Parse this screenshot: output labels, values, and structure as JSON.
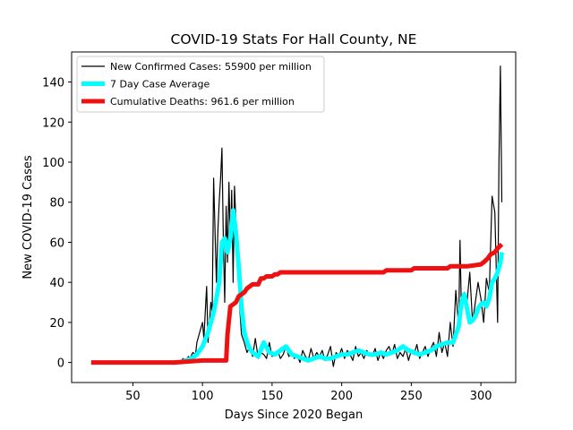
{
  "chart_data": {
    "type": "line",
    "title": "COVID-19 Stats For Hall County, NE",
    "xlabel": "Days Since 2020 Began",
    "ylabel": "New COVID-19 Cases",
    "xlim": [
      6,
      325
    ],
    "ylim": [
      -10,
      155
    ],
    "xticks": [
      50,
      100,
      150,
      200,
      250,
      300
    ],
    "yticks": [
      0,
      20,
      40,
      60,
      80,
      100,
      120,
      140
    ],
    "grid": false,
    "legend_position": "top-left",
    "series": [
      {
        "name": "New Confirmed Cases: 55900 per million",
        "color": "#000000",
        "x": [
          84,
          86,
          88,
          90,
          91,
          93,
          95,
          96,
          98,
          100,
          101,
          103,
          104,
          106,
          107,
          108,
          110,
          111,
          112,
          113,
          114,
          115,
          116,
          117,
          118,
          119,
          120,
          121,
          122,
          123,
          124,
          125,
          126,
          127,
          128,
          129,
          130,
          132,
          134,
          136,
          138,
          140,
          142,
          144,
          146,
          148,
          150,
          152,
          154,
          156,
          158,
          160,
          162,
          164,
          166,
          168,
          170,
          172,
          174,
          176,
          178,
          180,
          182,
          184,
          186,
          188,
          190,
          192,
          194,
          196,
          198,
          200,
          202,
          204,
          206,
          208,
          210,
          212,
          214,
          216,
          218,
          220,
          222,
          224,
          226,
          228,
          230,
          232,
          234,
          236,
          238,
          240,
          242,
          244,
          246,
          248,
          250,
          252,
          254,
          256,
          258,
          260,
          262,
          264,
          266,
          268,
          270,
          272,
          274,
          276,
          278,
          280,
          282,
          284,
          285,
          286,
          288,
          290,
          292,
          294,
          296,
          298,
          300,
          302,
          304,
          306,
          308,
          310,
          312,
          313,
          314,
          315
        ],
        "values": [
          0,
          2,
          1,
          3,
          2,
          5,
          4,
          10,
          15,
          20,
          12,
          38,
          10,
          30,
          25,
          92,
          40,
          65,
          80,
          92,
          107,
          60,
          30,
          78,
          50,
          90,
          60,
          86,
          40,
          88,
          70,
          50,
          40,
          25,
          14,
          12,
          10,
          5,
          8,
          3,
          12,
          2,
          5,
          4,
          2,
          10,
          3,
          5,
          6,
          2,
          4,
          8,
          3,
          5,
          2,
          4,
          0,
          6,
          3,
          1,
          7,
          2,
          5,
          3,
          6,
          1,
          4,
          8,
          -2,
          5,
          3,
          7,
          2,
          6,
          4,
          1,
          8,
          3,
          5,
          2,
          6,
          4,
          3,
          7,
          1,
          5,
          2,
          6,
          8,
          4,
          9,
          2,
          5,
          3,
          7,
          1,
          6,
          4,
          9,
          2,
          5,
          8,
          3,
          7,
          10,
          3,
          15,
          5,
          10,
          3,
          20,
          8,
          36,
          18,
          61,
          25,
          35,
          30,
          45,
          20,
          30,
          40,
          32,
          20,
          42,
          35,
          83,
          75,
          20,
          100,
          148,
          80
        ]
      },
      {
        "name": "7 Day Case Average",
        "color": "#00ffff",
        "x": [
          84,
          88,
          92,
          96,
          100,
          104,
          108,
          110,
          112,
          114,
          116,
          118,
          120,
          122,
          124,
          126,
          128,
          130,
          132,
          134,
          136,
          138,
          140,
          144,
          148,
          152,
          156,
          160,
          164,
          168,
          172,
          176,
          180,
          184,
          188,
          192,
          196,
          200,
          204,
          208,
          212,
          216,
          220,
          224,
          228,
          232,
          236,
          240,
          244,
          248,
          252,
          256,
          260,
          264,
          268,
          272,
          276,
          280,
          284,
          286,
          288,
          290,
          292,
          294,
          296,
          298,
          300,
          302,
          304,
          306,
          308,
          310,
          312,
          314,
          315
        ],
        "values": [
          0,
          1,
          2,
          4,
          8,
          15,
          25,
          32,
          40,
          60,
          62,
          55,
          62,
          76,
          65,
          48,
          28,
          15,
          10,
          7,
          5,
          4,
          3,
          10,
          5,
          4,
          6,
          8,
          4,
          3,
          2,
          1,
          2,
          3,
          2,
          2,
          3,
          4,
          4,
          5,
          6,
          5,
          4,
          4,
          5,
          4,
          5,
          6,
          8,
          6,
          5,
          4,
          5,
          6,
          8,
          9,
          10,
          10,
          18,
          30,
          34,
          27,
          20,
          21,
          23,
          27,
          29,
          30,
          28,
          32,
          40,
          42,
          45,
          50,
          55
        ]
      },
      {
        "name": "Cumulative Deaths: 961.6 per million",
        "color": "#ee1111",
        "x": [
          20,
          40,
          60,
          80,
          100,
          117,
          118,
          120,
          124,
          126,
          128,
          130,
          132,
          134,
          136,
          140,
          142,
          144,
          146,
          150,
          152,
          154,
          156,
          160,
          162,
          170,
          180,
          200,
          220,
          230,
          232,
          240,
          250,
          252,
          260,
          270,
          276,
          278,
          290,
          300,
          302,
          305,
          307,
          310,
          312,
          315
        ],
        "values": [
          0,
          0,
          0,
          0,
          1,
          1,
          14,
          28,
          30,
          33,
          34,
          35,
          37,
          38,
          39,
          39,
          42,
          42,
          43,
          43,
          44,
          44,
          45,
          45,
          45,
          45,
          45,
          45,
          45,
          45,
          46,
          46,
          46,
          47,
          47,
          47,
          47,
          48,
          48,
          49,
          50,
          52,
          54,
          55,
          57,
          59
        ]
      }
    ]
  }
}
